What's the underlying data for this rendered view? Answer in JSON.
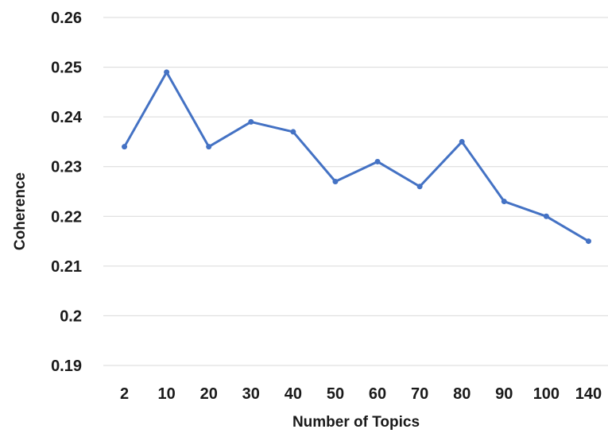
{
  "chart_data": {
    "type": "line",
    "title": "",
    "xlabel": "Number of Topics",
    "ylabel": "Coherence",
    "categories": [
      "2",
      "10",
      "20",
      "30",
      "40",
      "50",
      "60",
      "70",
      "80",
      "90",
      "100",
      "140"
    ],
    "series": [
      {
        "values": [
          0.234,
          0.249,
          0.234,
          0.239,
          0.237,
          0.227,
          0.231,
          0.226,
          0.235,
          0.223,
          0.22,
          0.215
        ]
      }
    ],
    "ylim": [
      0.19,
      0.26
    ],
    "yticks": [
      "0.19",
      "0.2",
      "0.21",
      "0.22",
      "0.23",
      "0.24",
      "0.25",
      "0.26"
    ],
    "grid": true,
    "legend": "none",
    "colors": {
      "line": "#4472c4",
      "grid": "#d9d9d9",
      "text": "#1a1a1a"
    }
  }
}
